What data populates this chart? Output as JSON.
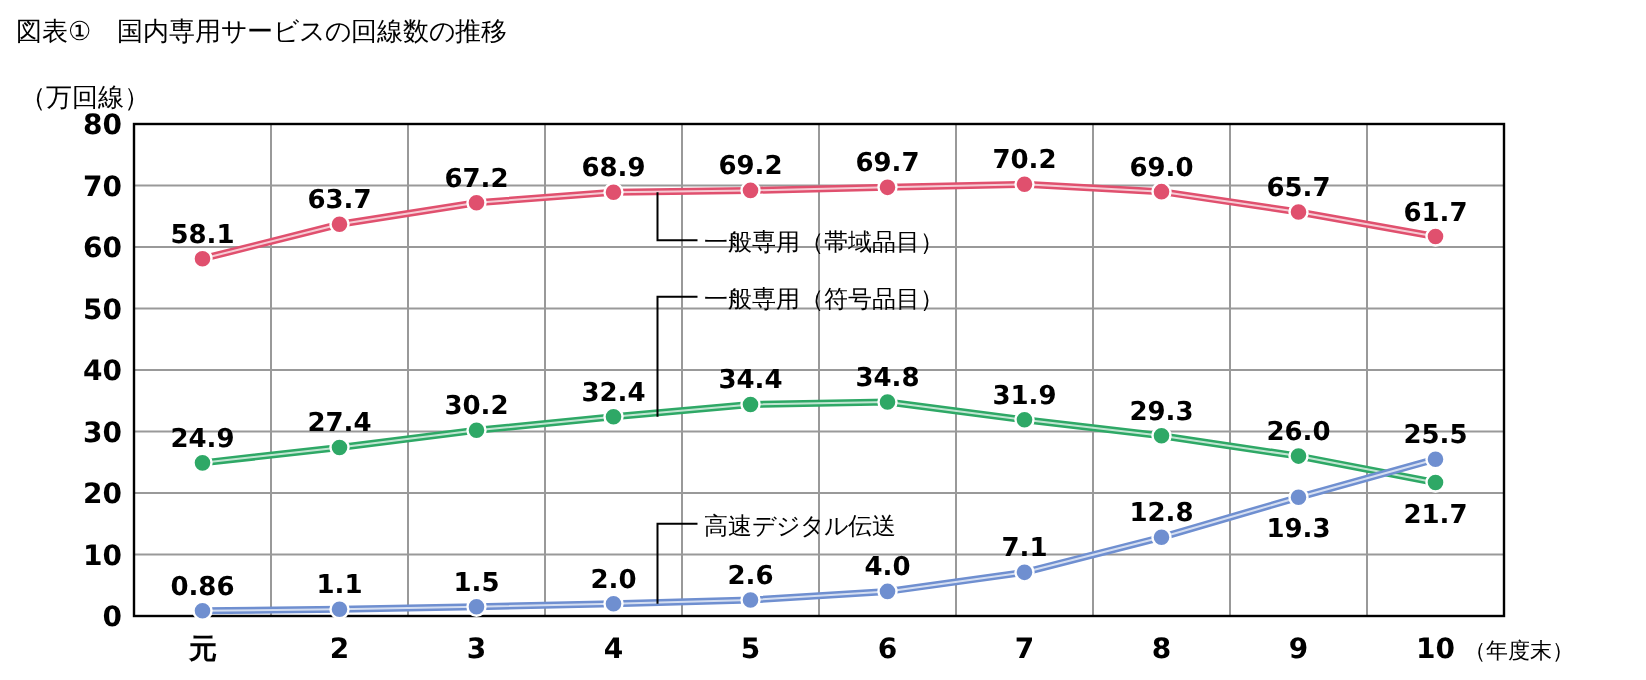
{
  "chart_data": {
    "type": "line",
    "title": "図表①　国内専用サービスの回線数の推移",
    "ylabel": "（万回線）",
    "xlabel": "（年度末）",
    "categories": [
      "元",
      "2",
      "3",
      "4",
      "5",
      "6",
      "7",
      "8",
      "9",
      "10"
    ],
    "ylim": [
      0,
      80
    ],
    "yticks": [
      0,
      10,
      20,
      30,
      40,
      50,
      60,
      70,
      80
    ],
    "grid": true,
    "legend": false,
    "marker": "circle",
    "line_style": "solid",
    "series": [
      {
        "name": "一般専用（帯域品目）",
        "color": "#e0506e",
        "values": [
          58.1,
          63.7,
          67.2,
          68.9,
          69.2,
          69.7,
          70.2,
          69.0,
          65.7,
          61.7
        ],
        "value_labels": [
          "58.1",
          "63.7",
          "67.2",
          "68.9",
          "69.2",
          "69.7",
          "70.2",
          "69.0",
          "65.7",
          "61.7"
        ]
      },
      {
        "name": "一般専用（符号品目）",
        "color": "#2ea866",
        "values": [
          24.9,
          27.4,
          30.2,
          32.4,
          34.4,
          34.8,
          31.9,
          29.3,
          26.0,
          21.7
        ],
        "value_labels": [
          "24.9",
          "27.4",
          "30.2",
          "32.4",
          "34.4",
          "34.8",
          "31.9",
          "29.3",
          "26.0",
          "21.7"
        ]
      },
      {
        "name": "高速デジタル伝送",
        "color": "#6f8fd0",
        "values": [
          0.86,
          1.1,
          1.5,
          2.0,
          2.6,
          4.0,
          7.1,
          12.8,
          19.3,
          25.5
        ],
        "value_labels": [
          "0.86",
          "1.1",
          "1.5",
          "2.0",
          "2.6",
          "4.0",
          "7.1",
          "12.8",
          "19.3",
          "25.5"
        ]
      }
    ]
  }
}
